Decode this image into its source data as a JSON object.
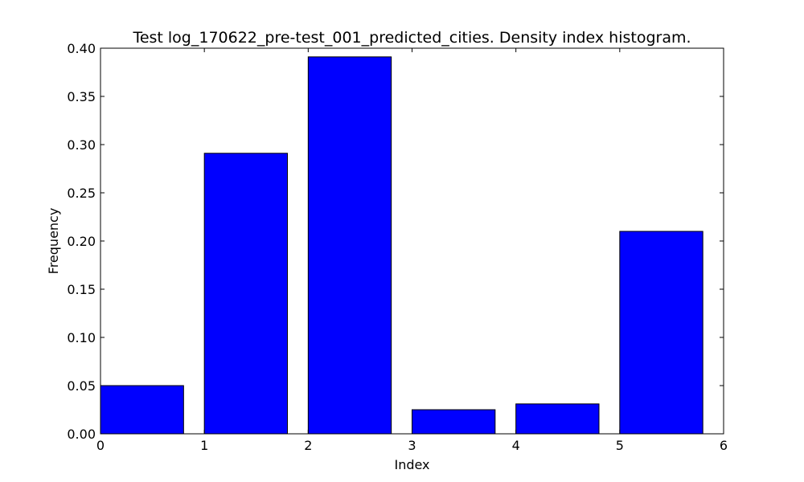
{
  "chart_data": {
    "type": "bar",
    "title": "Test log_170622_pre-test_001_predicted_cities. Density index histogram.",
    "xlabel": "Index",
    "ylabel": "Frequency",
    "xlim": [
      0,
      6
    ],
    "ylim": [
      0,
      0.4
    ],
    "xticks": [
      "0",
      "1",
      "2",
      "3",
      "4",
      "5",
      "6"
    ],
    "yticks": [
      "0.00",
      "0.05",
      "0.10",
      "0.15",
      "0.20",
      "0.25",
      "0.30",
      "0.35",
      "0.40"
    ],
    "bar_width": 0.8,
    "bars": [
      {
        "x": 0,
        "value": 0.05
      },
      {
        "x": 1,
        "value": 0.291
      },
      {
        "x": 2,
        "value": 0.391
      },
      {
        "x": 3,
        "value": 0.025
      },
      {
        "x": 4,
        "value": 0.031
      },
      {
        "x": 5,
        "value": 0.21
      }
    ],
    "bar_color": "#0000ff",
    "grid": false,
    "legend": "none"
  }
}
